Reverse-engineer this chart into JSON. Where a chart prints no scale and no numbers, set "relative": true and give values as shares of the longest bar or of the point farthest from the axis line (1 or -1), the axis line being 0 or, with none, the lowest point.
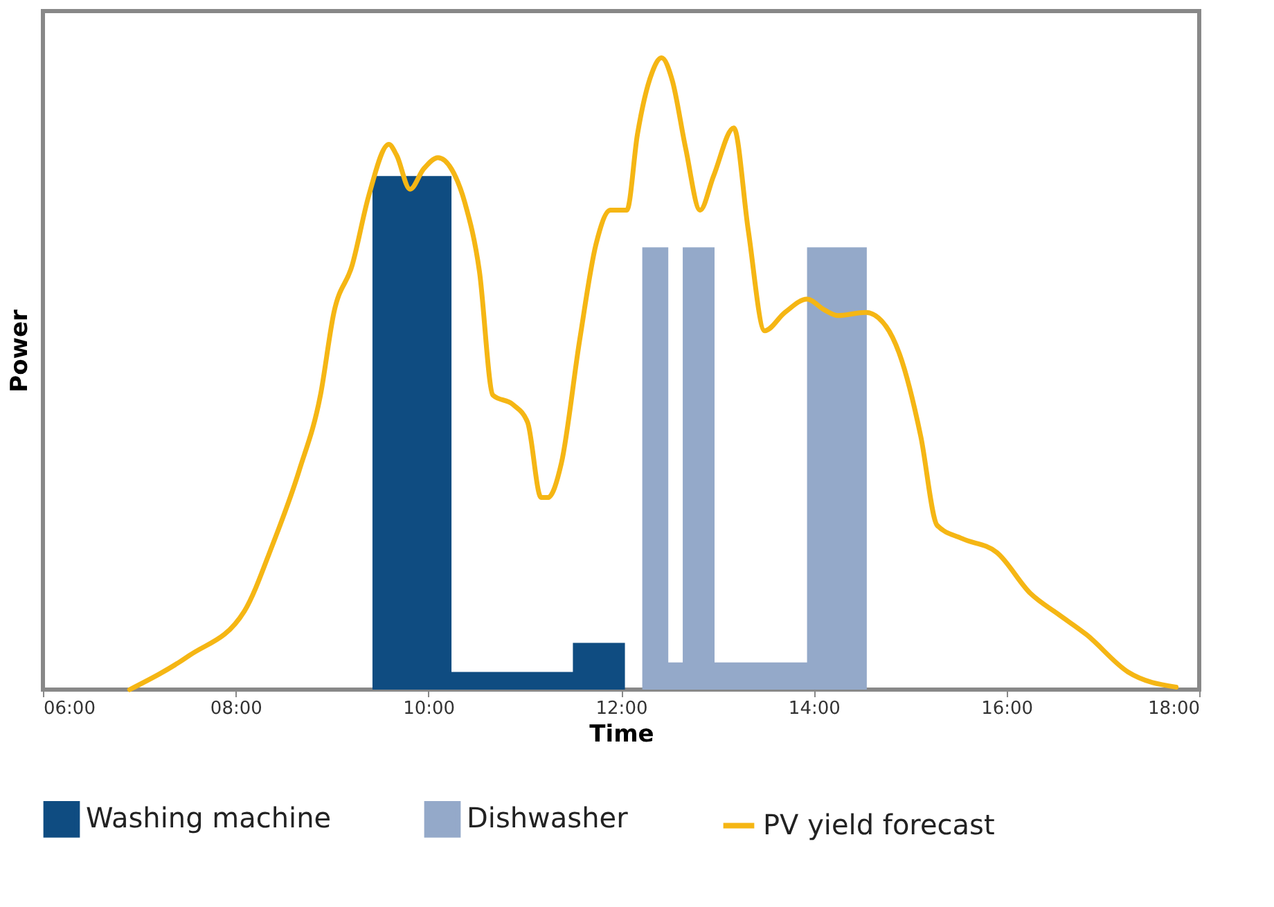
{
  "chart_data": {
    "type": "area",
    "xlabel": "Time",
    "ylabel": "Power",
    "relative": true,
    "xlim": [
      6,
      18
    ],
    "xticks": [
      {
        "value": 6,
        "label": "06:00"
      },
      {
        "value": 8,
        "label": "08:00"
      },
      {
        "value": 10,
        "label": "10:00"
      },
      {
        "value": 12,
        "label": "12:00"
      },
      {
        "value": 14,
        "label": "14:00"
      },
      {
        "value": 16,
        "label": "16:00"
      },
      {
        "value": 18,
        "label": "18:00"
      }
    ],
    "grid": false,
    "legend": "bottom",
    "series": [
      {
        "name": "Washing machine",
        "color": "#0f4c81",
        "x": [
          9.42,
          9.42,
          10.24,
          10.24,
          11.5,
          11.5,
          12.04,
          12.04
        ],
        "values": [
          0,
          0.813,
          0.813,
          0.028,
          0.028,
          0.074,
          0.074,
          0
        ]
      },
      {
        "name": "Dishwasher",
        "color": "#94a9c9",
        "x": [
          12.22,
          12.22,
          12.49,
          12.49,
          12.64,
          12.64,
          12.97,
          12.97,
          13.93,
          13.93,
          14.55,
          14.55
        ],
        "values": [
          0,
          0.7,
          0.7,
          0.043,
          0.043,
          0.7,
          0.7,
          0.043,
          0.043,
          0.7,
          0.7,
          0
        ]
      },
      {
        "name": "PV yield forecast",
        "type": "line",
        "color": "#f5b614",
        "x": [
          6.9,
          7.52,
          8.09,
          8.38,
          8.66,
          8.88,
          9.02,
          9.21,
          9.38,
          9.59,
          9.67,
          9.81,
          9.95,
          10.1,
          10.24,
          10.38,
          10.53,
          10.67,
          10.88,
          11.03,
          11.17,
          11.24,
          11.38,
          11.57,
          11.74,
          11.89,
          12.06,
          12.17,
          12.32,
          12.42,
          12.53,
          12.67,
          12.82,
          12.96,
          13.17,
          13.32,
          13.49,
          13.7,
          13.93,
          14.11,
          14.25,
          14.54,
          14.75,
          14.89,
          15.11,
          15.28,
          15.54,
          15.9,
          16.25,
          16.54,
          16.83,
          17.26,
          17.76
        ],
        "values": [
          0,
          0.054,
          0.124,
          0.228,
          0.347,
          0.466,
          0.597,
          0.672,
          0.781,
          0.863,
          0.846,
          0.792,
          0.824,
          0.842,
          0.824,
          0.77,
          0.662,
          0.466,
          0.451,
          0.423,
          0.304,
          0.304,
          0.358,
          0.553,
          0.705,
          0.759,
          0.759,
          0.879,
          0.976,
          1,
          0.965,
          0.857,
          0.759,
          0.813,
          0.889,
          0.727,
          0.568,
          0.597,
          0.618,
          0.601,
          0.592,
          0.597,
          0.575,
          0.531,
          0.401,
          0.26,
          0.239,
          0.217,
          0.152,
          0.119,
          0.087,
          0.028,
          0.004
        ]
      }
    ]
  }
}
